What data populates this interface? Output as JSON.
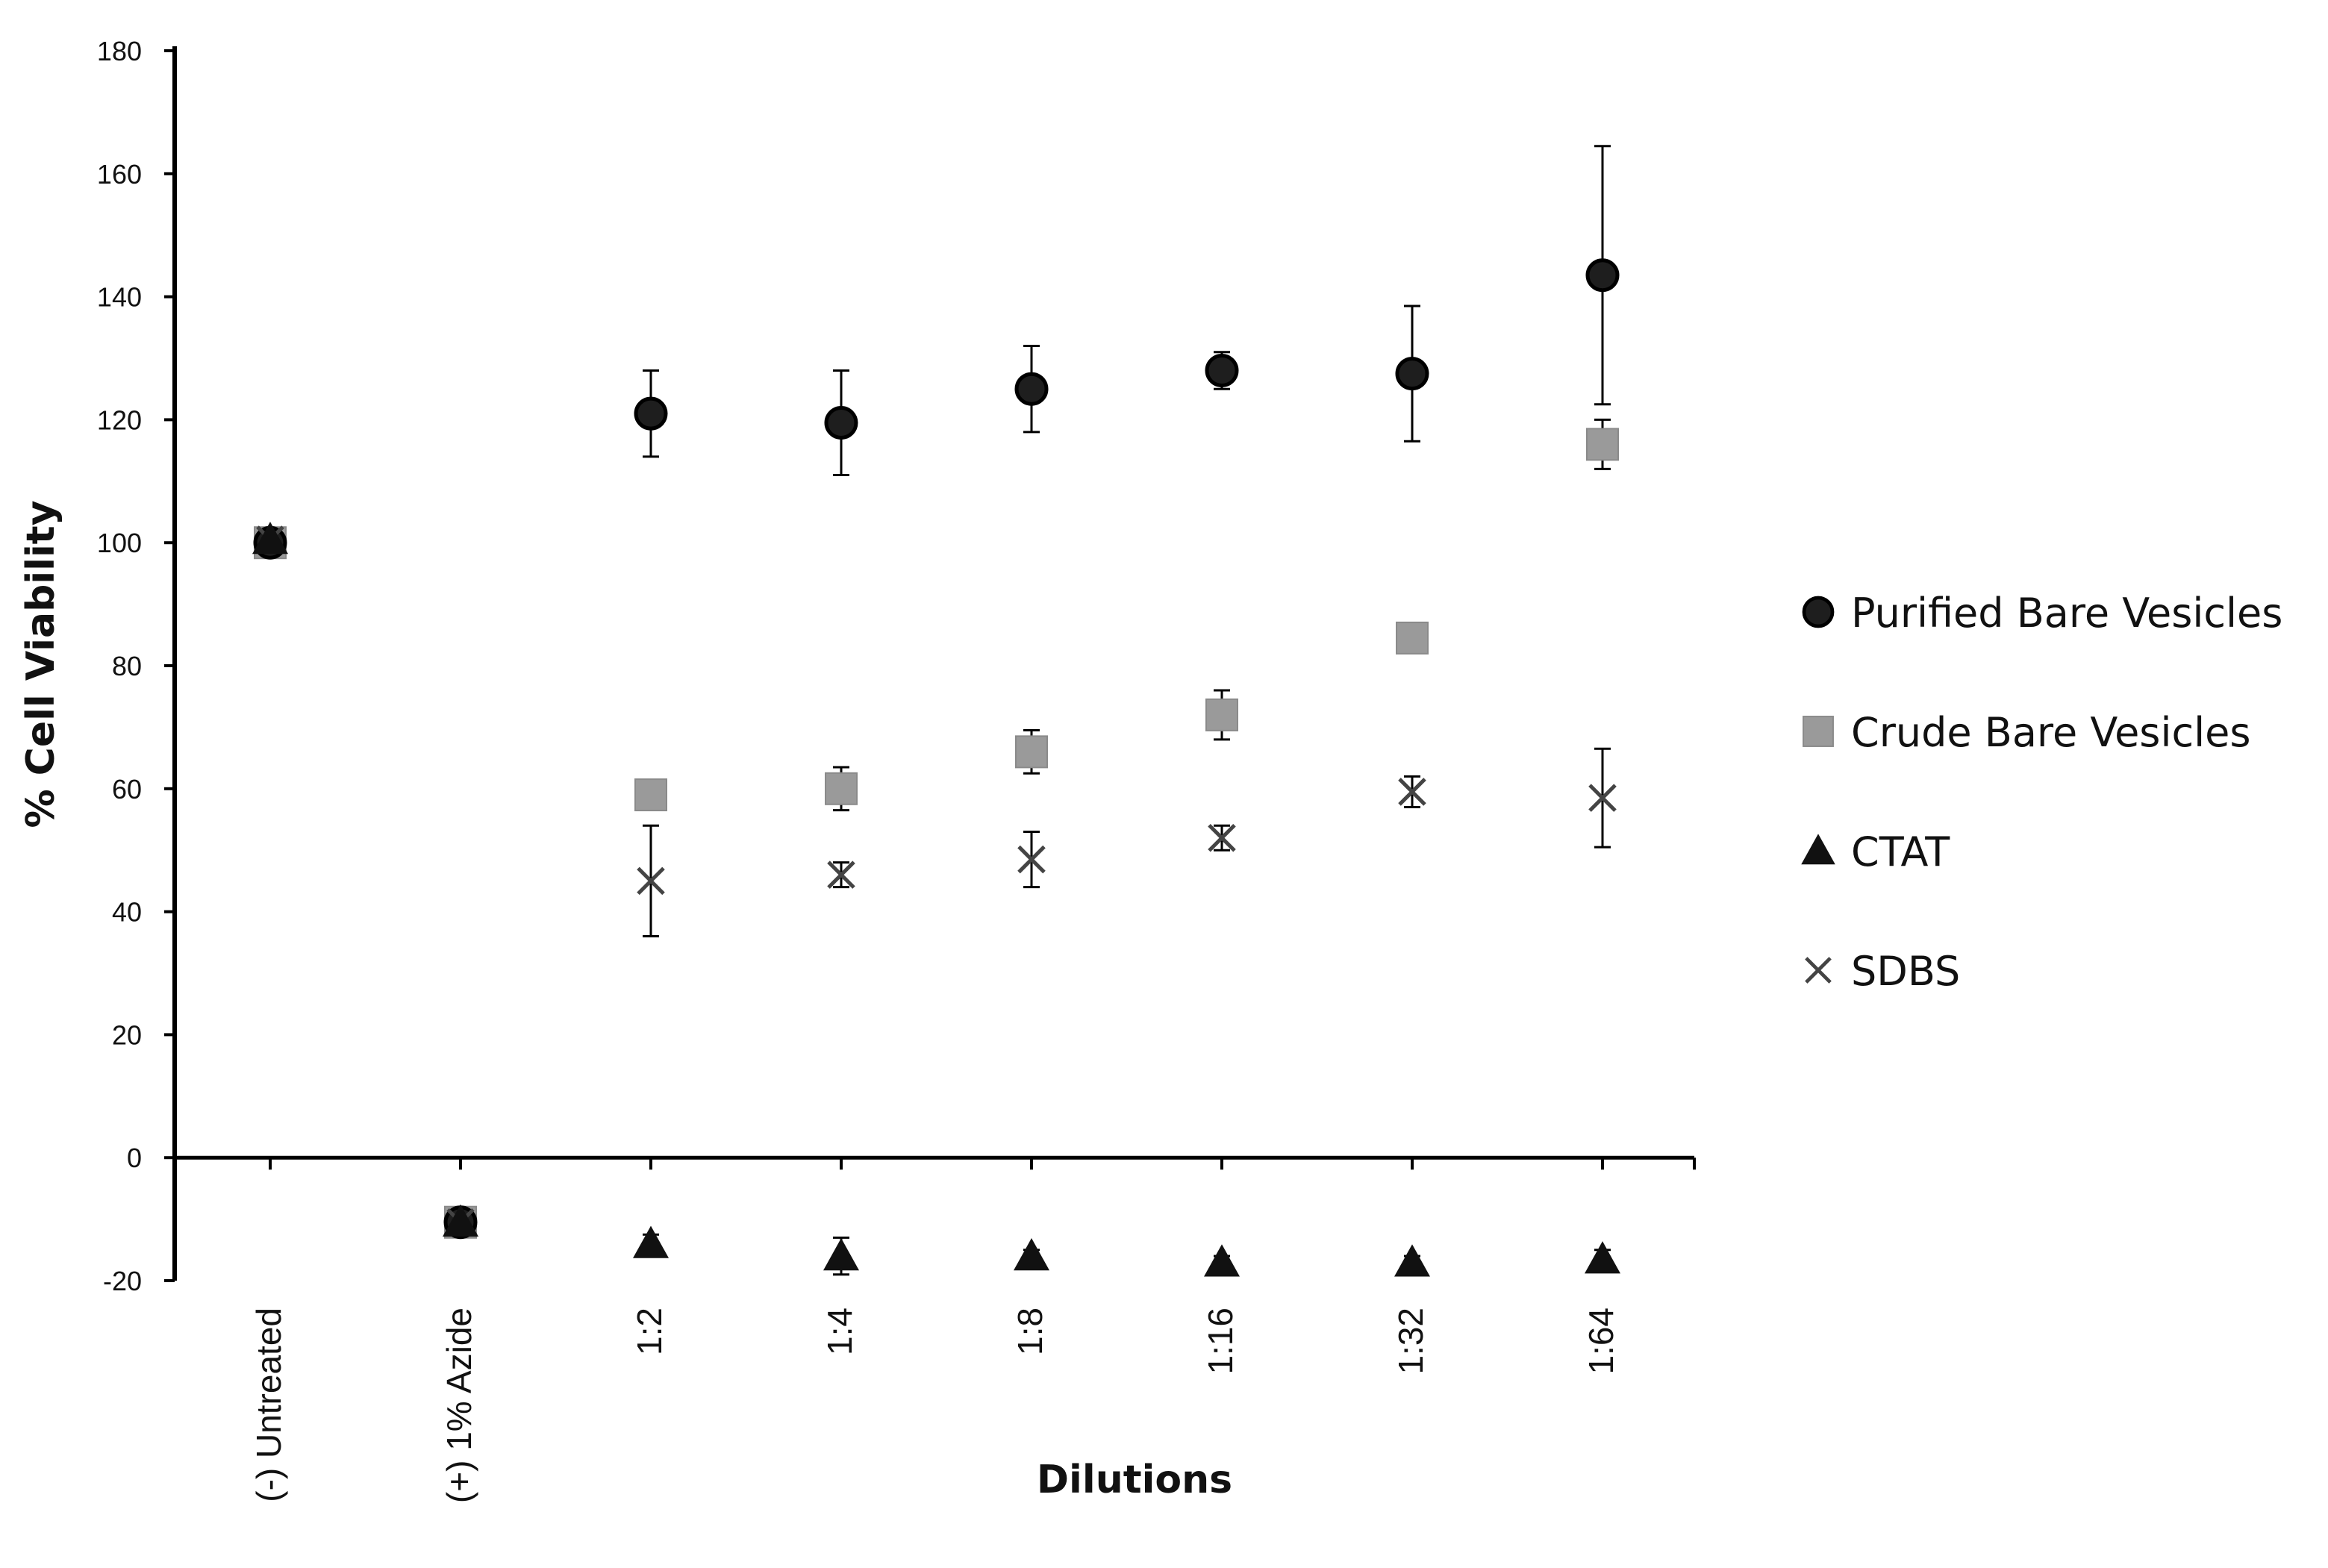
{
  "chart_data": {
    "type": "scatter",
    "xlabel": "Dilutions",
    "ylabel": "% Cell Viability",
    "categories": [
      "(-) Untreated",
      "(+) 1% Azide",
      "1:2",
      "1:4",
      "1:8",
      "1:16",
      "1:32",
      "1:64"
    ],
    "ylim": [
      -20,
      180
    ],
    "yticks": [
      "180",
      "160",
      "140",
      "120",
      "100",
      "80",
      "60",
      "40",
      "20",
      "0",
      "-20"
    ],
    "grid": false,
    "legend_position": "right",
    "series": [
      {
        "name": "Purified Bare Vesicles",
        "marker": "circle",
        "color": "#1e1e1e",
        "values": [
          100,
          -10.5,
          121,
          119.5,
          125,
          128,
          127.5,
          143.5
        ],
        "errors": [
          0,
          0,
          7,
          8.5,
          7,
          3,
          11,
          21
        ]
      },
      {
        "name": "Crude Bare Vesicles",
        "marker": "square",
        "color": "#9a9a9a",
        "values": [
          100,
          -10.5,
          59,
          60,
          66,
          72,
          84.5,
          116
        ],
        "errors": [
          0,
          0,
          1.5,
          3.5,
          3.5,
          4,
          1.5,
          4
        ]
      },
      {
        "name": "CTAT",
        "marker": "triangle",
        "color": "#111111",
        "values": [
          100.5,
          -10.5,
          -14,
          -16,
          -16,
          -17,
          -17,
          -16.5
        ],
        "errors": [
          0,
          0,
          1.5,
          3,
          1,
          1,
          1,
          1.5
        ]
      },
      {
        "name": "SDBS",
        "marker": "x",
        "color": "#444444",
        "values": [
          100.5,
          -10.5,
          45,
          46,
          48.5,
          52,
          59.5,
          58.5
        ],
        "errors": [
          0,
          0,
          9,
          2,
          4.5,
          2,
          2.5,
          8
        ]
      }
    ]
  }
}
